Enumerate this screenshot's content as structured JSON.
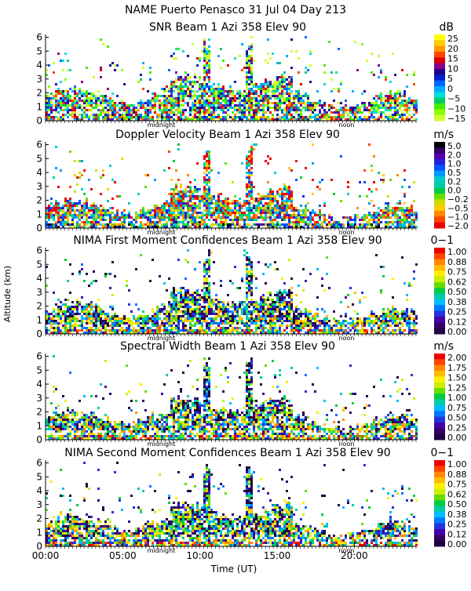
{
  "header": {
    "line1": "NAME Puerto Penasco  31 Jul 04 Day 213"
  },
  "axes": {
    "ylabel": "Altitude (km)",
    "xlabel": "Time (UT)",
    "xticks": [
      "00:00",
      "05:00",
      "10:00",
      "15:00",
      "20:00"
    ],
    "xtick_hours": [
      0,
      5,
      10,
      15,
      20
    ],
    "xrange": [
      0,
      24
    ],
    "yticks": [
      "0",
      "1",
      "2",
      "3",
      "4",
      "5",
      "6"
    ],
    "yrange": [
      0,
      6.2
    ],
    "midnight_label": "midnight",
    "noon_label": "noon",
    "midnight_hour": 7.5,
    "noon_hour": 19.5
  },
  "chart_data": [
    {
      "type": "heatmap",
      "title": "SNR Beam 1 Azi 358 Elev 90",
      "unit": "dB",
      "colorbar_labels": [
        "25",
        "20",
        "15",
        "10",
        "5",
        "0",
        "−5",
        "−10",
        "−15"
      ],
      "colors": [
        "#ffff00",
        "#ffcc00",
        "#ff9900",
        "#ff4400",
        "#dd0000",
        "#880088",
        "#220088",
        "#0022cc",
        "#0066ff",
        "#00aaff",
        "#00dddd",
        "#00cc66",
        "#44ee00",
        "#88ff00",
        "#ccff33"
      ],
      "base_top": 1.7,
      "seed": 11
    },
    {
      "type": "heatmap",
      "title": "Doppler Velocity Beam 1 Azi 358 Elev 90",
      "unit": "m/s",
      "colorbar_labels": [
        "5.0",
        "2.0",
        "1.0",
        "0.5",
        "0.2",
        "0.0",
        "−0.2",
        "−0.5",
        "−1.0",
        "−2.0"
      ],
      "colors": [
        "#000000",
        "#330066",
        "#5500aa",
        "#2222dd",
        "#0055ff",
        "#0099ff",
        "#00cccc",
        "#00ccaa",
        "#00cc44",
        "#66dd00",
        "#ccdd00",
        "#ffcc00",
        "#ff8800",
        "#ff4400",
        "#ee0000"
      ],
      "base_top": 1.4,
      "seed": 23
    },
    {
      "type": "heatmap",
      "title": "NIMA First Moment Confidences Beam 1 Azi 358 Elev 90",
      "unit": "0−1",
      "colorbar_labels": [
        "1.00",
        "0.88",
        "0.75",
        "0.62",
        "0.50",
        "0.38",
        "0.25",
        "0.12",
        "0.00"
      ],
      "colors": [
        "#ee0000",
        "#ff4400",
        "#ff8800",
        "#ffbb00",
        "#ffee00",
        "#ccee00",
        "#66dd00",
        "#00cc44",
        "#00ccaa",
        "#00bbff",
        "#0077ff",
        "#2233dd",
        "#4400aa",
        "#330066",
        "#220044"
      ],
      "base_top": 1.6,
      "seed": 37
    },
    {
      "type": "heatmap",
      "title": "Spectral Width Beam 1 Azi 358 Elev 90",
      "unit": "m/s",
      "colorbar_labels": [
        "2.00",
        "1.75",
        "1.50",
        "1.25",
        "1.00",
        "0.75",
        "0.50",
        "0.25",
        "0.00"
      ],
      "colors": [
        "#ee0000",
        "#ff4400",
        "#ff8800",
        "#ffbb00",
        "#ffee00",
        "#ccee00",
        "#66dd00",
        "#00cc44",
        "#00ccaa",
        "#00bbff",
        "#0077ff",
        "#2233dd",
        "#4400aa",
        "#330066",
        "#220044"
      ],
      "base_top": 1.5,
      "seed": 51
    },
    {
      "type": "heatmap",
      "title": "NIMA Second Moment Confidences Beam 1 Azi 358 Elev 90",
      "unit": "0−1",
      "colorbar_labels": [
        "1.00",
        "0.88",
        "0.75",
        "0.62",
        "0.50",
        "0.38",
        "0.25",
        "0.12",
        "0.00"
      ],
      "colors": [
        "#ee0000",
        "#ff4400",
        "#ff8800",
        "#ffbb00",
        "#ffee00",
        "#ccee00",
        "#66dd00",
        "#00cc44",
        "#00ccaa",
        "#00bbff",
        "#0077ff",
        "#2233dd",
        "#4400aa",
        "#330066",
        "#220044"
      ],
      "base_top": 1.5,
      "seed": 67
    }
  ]
}
